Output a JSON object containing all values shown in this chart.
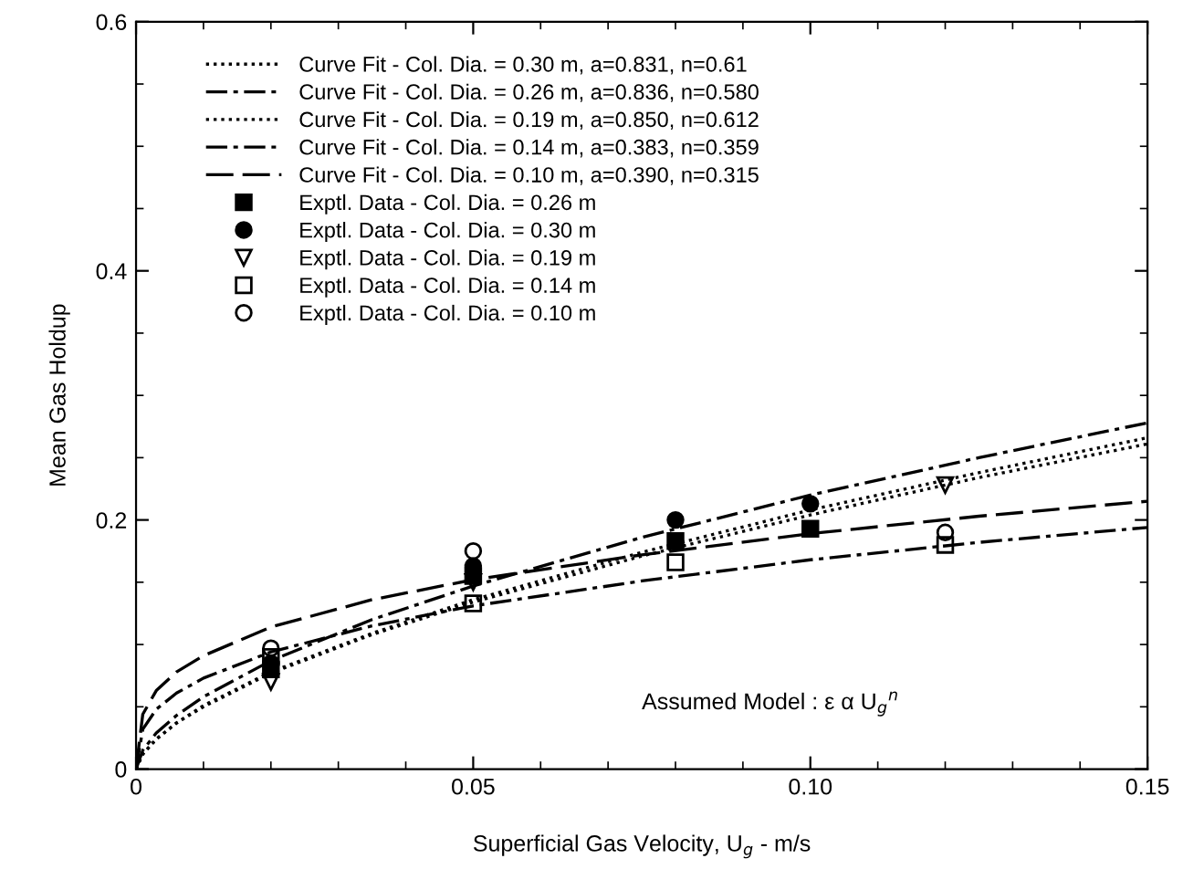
{
  "chart_data": {
    "type": "line",
    "xlabel": "Superficial Gas Velocity, U$_{g}$ - m/s",
    "ylabel": "Mean Gas Holdup",
    "xlim": [
      0,
      0.15
    ],
    "ylim": [
      0,
      0.6
    ],
    "xticks": [
      0,
      0.05,
      {
        "value": 0.1,
        "label": "0.10"
      },
      0.15
    ],
    "yticks": [
      0,
      0.2,
      0.4,
      0.6
    ],
    "grid": false,
    "legend": "top left",
    "annotations": [
      "Assumed Model : ε α U$_{g}$$^{n}$"
    ],
    "series": [
      {
        "name": "Curve Fit - Col. Dia. = 0.30 m, a=0.831, n=0.61",
        "color": "#000000",
        "line_style": "dotted",
        "marker": "none",
        "x": [
          0,
          0.001,
          0.003,
          0.006,
          0.01,
          0.02,
          0.035,
          0.05,
          0.075,
          0.1,
          0.125,
          0.15
        ],
        "values": [
          0,
          0.012,
          0.024,
          0.037,
          0.05,
          0.077,
          0.108,
          0.134,
          0.171,
          0.204,
          0.234,
          0.261
        ]
      },
      {
        "name": "Curve Fit - Col. Dia. = 0.26 m, a=0.836, n=0.580",
        "color": "#000000",
        "line_style": "dashdot",
        "marker": "none",
        "x": [
          0,
          0.001,
          0.003,
          0.006,
          0.01,
          0.02,
          0.035,
          0.05,
          0.075,
          0.1,
          0.125,
          0.15
        ],
        "values": [
          0,
          0.015,
          0.029,
          0.043,
          0.058,
          0.087,
          0.12,
          0.147,
          0.186,
          0.22,
          0.25,
          0.278
        ]
      },
      {
        "name": "Curve Fit - Col. Dia. = 0.19 m, a=0.850, n=0.612",
        "color": "#000000",
        "line_style": "dotted",
        "marker": "none",
        "x": [
          0,
          0.001,
          0.003,
          0.006,
          0.01,
          0.02,
          0.035,
          0.05,
          0.075,
          0.1,
          0.125,
          0.15
        ],
        "values": [
          0,
          0.012,
          0.024,
          0.037,
          0.051,
          0.078,
          0.109,
          0.136,
          0.174,
          0.208,
          0.238,
          0.266
        ]
      },
      {
        "name": "Curve Fit - Col. Dia. = 0.14 m, a=0.383, n=0.359",
        "color": "#000000",
        "line_style": "dashdot",
        "marker": "none",
        "x": [
          0,
          0.001,
          0.003,
          0.006,
          0.01,
          0.02,
          0.035,
          0.05,
          0.075,
          0.1,
          0.125,
          0.15
        ],
        "values": [
          0,
          0.032,
          0.048,
          0.061,
          0.073,
          0.094,
          0.115,
          0.131,
          0.151,
          0.168,
          0.182,
          0.194
        ]
      },
      {
        "name": "Curve Fit - Col. Dia. = 0.10 m, a=0.390, n=0.315",
        "color": "#000000",
        "line_style": "dashed",
        "marker": "none",
        "x": [
          0,
          0.001,
          0.003,
          0.006,
          0.01,
          0.02,
          0.035,
          0.05,
          0.075,
          0.1,
          0.125,
          0.15
        ],
        "values": [
          0,
          0.044,
          0.063,
          0.078,
          0.091,
          0.114,
          0.136,
          0.152,
          0.172,
          0.189,
          0.203,
          0.215
        ]
      },
      {
        "name": "Exptl. Data - Col. Dia. = 0.26 m",
        "type": "scatter",
        "color": "#000000",
        "marker": "square",
        "x": [
          0.02,
          0.05,
          0.08,
          0.1
        ],
        "values": [
          0.08,
          0.155,
          0.183,
          0.193
        ]
      },
      {
        "name": "Exptl. Data - Col. Dia. = 0.30 m",
        "type": "scatter",
        "color": "#000000",
        "marker": "circle",
        "x": [
          0.02,
          0.05,
          0.08,
          0.1
        ],
        "values": [
          0.085,
          0.163,
          0.2,
          0.213
        ]
      },
      {
        "name": "Exptl. Data - Col. Dia. = 0.19 m",
        "type": "scatter",
        "color": "#000000",
        "marker": "triangle",
        "x": [
          0.02,
          0.05,
          0.12
        ],
        "values": [
          0.07,
          0.15,
          0.228
        ]
      },
      {
        "name": "Exptl. Data - Col. Dia. = 0.14 m",
        "type": "scatter",
        "color": "#000000",
        "marker": "square",
        "x": [
          0.02,
          0.05,
          0.08,
          0.12
        ],
        "values": [
          0.09,
          0.133,
          0.166,
          0.18
        ]
      },
      {
        "name": "Exptl. Data - Col. Dia. = 0.10 m",
        "type": "scatter",
        "color": "#000000",
        "marker": "circle",
        "x": [
          0.02,
          0.05,
          0.12
        ],
        "values": [
          0.097,
          0.175,
          0.19
        ]
      }
    ]
  }
}
